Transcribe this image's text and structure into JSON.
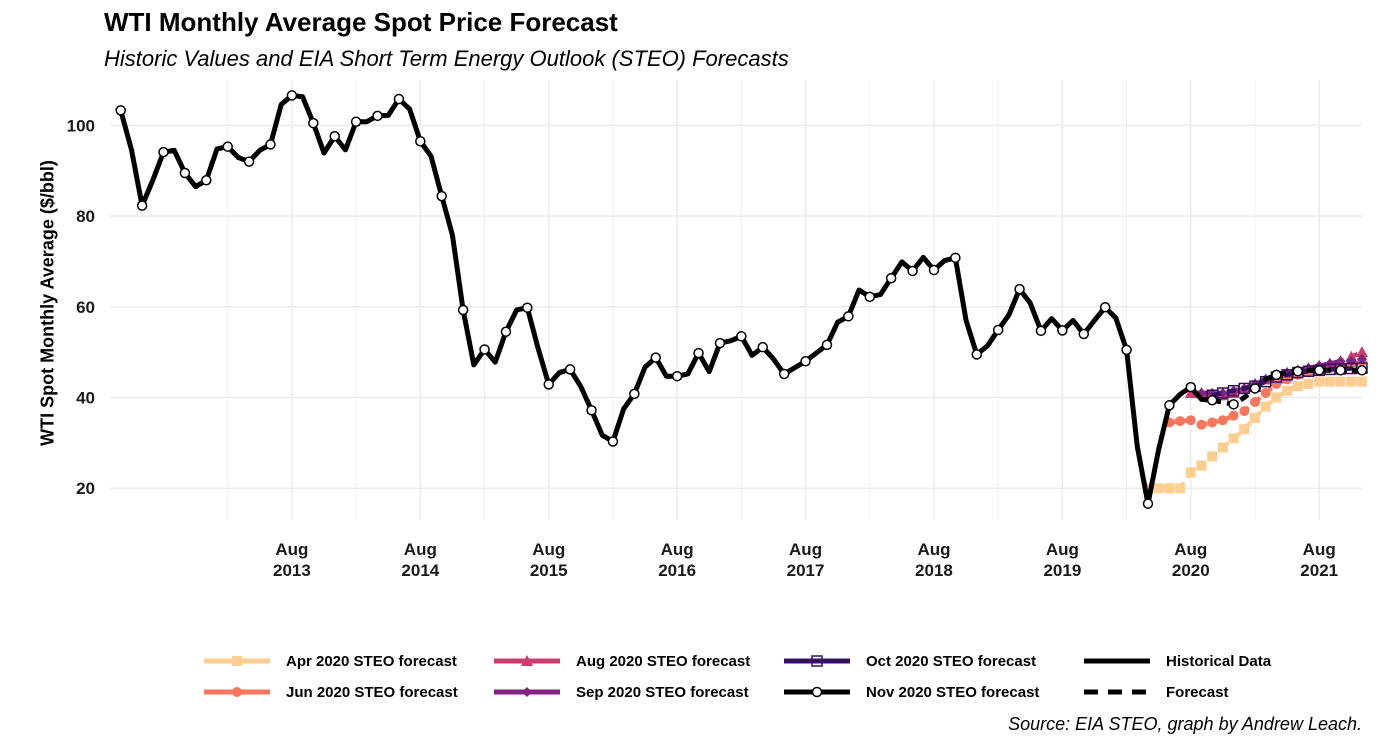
{
  "title": "WTI Monthly Average Spot Price Forecast",
  "subtitle": "Historic Values and EIA Short Term Energy Outlook (STEO) Forecasts",
  "caption": "Source: EIA STEO, graph by Andrew Leach.",
  "chart_data": {
    "type": "line",
    "ylabel": "WTI Spot Monthly Average ($/bbl)",
    "xlabel": "",
    "ylim": [
      13,
      110
    ],
    "xlim": [
      "2012-03",
      "2021-12"
    ],
    "y_ticks": [
      "20",
      "40",
      "60",
      "80",
      "100"
    ],
    "x_ticks": [
      {
        "month": "Aug",
        "year": "2013",
        "date": "2013-08"
      },
      {
        "month": "Aug",
        "year": "2014",
        "date": "2014-08"
      },
      {
        "month": "Aug",
        "year": "2015",
        "date": "2015-08"
      },
      {
        "month": "Aug",
        "year": "2016",
        "date": "2016-08"
      },
      {
        "month": "Aug",
        "year": "2017",
        "date": "2017-08"
      },
      {
        "month": "Aug",
        "year": "2018",
        "date": "2018-08"
      },
      {
        "month": "Aug",
        "year": "2019",
        "date": "2019-08"
      },
      {
        "month": "Aug",
        "year": "2020",
        "date": "2020-08"
      },
      {
        "month": "Aug",
        "year": "2021",
        "date": "2021-08"
      }
    ],
    "grid": true,
    "legend_position": "bottom",
    "series": [
      {
        "name": "Historical Data",
        "color": "#000000",
        "style": "solid",
        "marker": "none",
        "x": [
          "2012-04",
          "2012-05",
          "2012-06",
          "2012-07",
          "2012-08",
          "2012-09",
          "2012-10",
          "2012-11",
          "2012-12",
          "2013-01",
          "2013-02",
          "2013-03",
          "2013-04",
          "2013-05",
          "2013-06",
          "2013-07",
          "2013-08",
          "2013-09",
          "2013-10",
          "2013-11",
          "2013-12",
          "2014-01",
          "2014-02",
          "2014-03",
          "2014-04",
          "2014-05",
          "2014-06",
          "2014-07",
          "2014-08",
          "2014-09",
          "2014-10",
          "2014-11",
          "2014-12",
          "2015-01",
          "2015-02",
          "2015-03",
          "2015-04",
          "2015-05",
          "2015-06",
          "2015-07",
          "2015-08",
          "2015-09",
          "2015-10",
          "2015-11",
          "2015-12",
          "2016-01",
          "2016-02",
          "2016-03",
          "2016-04",
          "2016-05",
          "2016-06",
          "2016-07",
          "2016-08",
          "2016-09",
          "2016-10",
          "2016-11",
          "2016-12",
          "2017-01",
          "2017-02",
          "2017-03",
          "2017-04",
          "2017-05",
          "2017-06",
          "2017-07",
          "2017-08",
          "2017-09",
          "2017-10",
          "2017-11",
          "2017-12",
          "2018-01",
          "2018-02",
          "2018-03",
          "2018-04",
          "2018-05",
          "2018-06",
          "2018-07",
          "2018-08",
          "2018-09",
          "2018-10",
          "2018-11",
          "2018-12",
          "2019-01",
          "2019-02",
          "2019-03",
          "2019-04",
          "2019-05",
          "2019-06",
          "2019-07",
          "2019-08",
          "2019-09",
          "2019-10",
          "2019-11",
          "2019-12",
          "2020-01",
          "2020-02",
          "2020-03",
          "2020-04",
          "2020-05",
          "2020-06",
          "2020-07",
          "2020-08",
          "2020-09",
          "2020-10"
        ],
        "values": [
          103.3,
          94.7,
          82.3,
          87.9,
          94.1,
          94.5,
          89.5,
          86.5,
          87.9,
          94.8,
          95.3,
          92.9,
          92.0,
          94.5,
          95.8,
          104.6,
          106.6,
          106.3,
          100.5,
          93.9,
          97.6,
          94.6,
          100.8,
          100.8,
          102.1,
          102.2,
          105.8,
          103.6,
          96.5,
          93.2,
          84.4,
          75.8,
          59.3,
          47.2,
          50.6,
          47.8,
          54.5,
          59.3,
          59.8,
          50.9,
          42.9,
          45.5,
          46.2,
          42.4,
          37.2,
          31.7,
          30.3,
          37.5,
          40.8,
          46.7,
          48.8,
          44.7,
          44.7,
          45.2,
          49.8,
          45.7,
          52.0,
          52.5,
          53.5,
          49.3,
          51.1,
          48.5,
          45.2,
          46.6,
          48.0,
          49.8,
          51.6,
          56.6,
          57.9,
          63.7,
          62.2,
          62.7,
          66.3,
          69.9,
          67.9,
          70.9,
          68.1,
          70.2,
          70.8,
          57.0,
          49.5,
          51.4,
          54.9,
          58.2,
          63.9,
          60.8,
          54.7,
          57.4,
          54.8,
          57.0,
          54.0,
          57.0,
          59.9,
          57.5,
          50.5,
          29.2,
          16.6,
          28.6,
          38.3,
          40.7,
          42.3,
          39.6,
          39.4
        ]
      },
      {
        "name": "Nov 2020 STEO forecast",
        "color": "#000000",
        "style": "solid",
        "marker": "open-circle",
        "x": [
          "2012-04",
          "2012-05",
          "2012-06",
          "2012-07",
          "2012-08",
          "2012-09",
          "2012-10",
          "2012-11",
          "2012-12",
          "2013-01",
          "2013-02",
          "2013-03",
          "2013-04",
          "2013-05",
          "2013-06",
          "2013-07",
          "2013-08",
          "2013-09",
          "2013-10",
          "2013-11",
          "2013-12",
          "2014-01",
          "2014-02",
          "2014-03",
          "2014-04",
          "2014-05",
          "2014-06",
          "2014-07",
          "2014-08",
          "2014-09",
          "2014-10",
          "2014-11",
          "2014-12",
          "2015-01",
          "2015-02",
          "2015-03",
          "2015-04",
          "2015-05",
          "2015-06",
          "2015-07",
          "2015-08",
          "2015-09",
          "2015-10",
          "2015-11",
          "2015-12",
          "2016-01",
          "2016-02",
          "2016-03",
          "2016-04",
          "2016-05",
          "2016-06",
          "2016-07",
          "2016-08",
          "2016-09",
          "2016-10",
          "2016-11",
          "2016-12",
          "2017-01",
          "2017-02",
          "2017-03",
          "2017-04",
          "2017-05",
          "2017-06",
          "2017-07",
          "2017-08",
          "2017-09",
          "2017-10",
          "2017-11",
          "2017-12",
          "2018-01",
          "2018-02",
          "2018-03",
          "2018-04",
          "2018-05",
          "2018-06",
          "2018-07",
          "2018-08",
          "2018-09",
          "2018-10",
          "2018-11",
          "2018-12",
          "2019-01",
          "2019-02",
          "2019-03",
          "2019-04",
          "2019-05",
          "2019-06",
          "2019-07",
          "2019-08",
          "2019-09",
          "2019-10",
          "2019-11",
          "2019-12",
          "2020-01",
          "2020-02",
          "2020-03",
          "2020-04",
          "2020-05",
          "2020-06",
          "2020-07",
          "2020-08",
          "2020-09",
          "2020-10",
          "2020-11",
          "2020-12",
          "2021-01",
          "2021-02",
          "2021-03",
          "2021-04",
          "2021-05",
          "2021-06",
          "2021-07",
          "2021-08",
          "2021-09",
          "2021-10",
          "2021-11",
          "2021-12"
        ],
        "values": [
          103.3,
          94.7,
          82.3,
          87.9,
          94.1,
          94.5,
          89.5,
          86.5,
          87.9,
          94.8,
          95.3,
          92.9,
          92.0,
          94.5,
          95.8,
          104.6,
          106.6,
          106.3,
          100.5,
          93.9,
          97.6,
          94.6,
          100.8,
          100.8,
          102.1,
          102.2,
          105.8,
          103.6,
          96.5,
          93.2,
          84.4,
          75.8,
          59.3,
          47.2,
          50.6,
          47.8,
          54.5,
          59.3,
          59.8,
          50.9,
          42.9,
          45.5,
          46.2,
          42.4,
          37.2,
          31.7,
          30.3,
          37.5,
          40.8,
          46.7,
          48.8,
          44.7,
          44.7,
          45.2,
          49.8,
          45.7,
          52.0,
          52.5,
          53.5,
          49.3,
          51.1,
          48.5,
          45.2,
          46.6,
          48.0,
          49.8,
          51.6,
          56.6,
          57.9,
          63.7,
          62.2,
          62.7,
          66.3,
          69.9,
          67.9,
          70.9,
          68.1,
          70.2,
          70.8,
          57.0,
          49.5,
          51.4,
          54.9,
          58.2,
          63.9,
          60.8,
          54.7,
          57.4,
          54.8,
          57.0,
          54.0,
          57.0,
          59.9,
          57.5,
          50.5,
          29.2,
          16.6,
          28.6,
          38.3,
          40.7,
          42.3,
          39.6,
          39.4,
          39.0,
          38.5,
          40.0,
          42.0,
          44.0,
          45.0,
          45.5,
          45.8,
          46.0,
          46.0,
          46.0,
          46.0,
          46.0,
          46.0
        ]
      },
      {
        "name": "Apr 2020 STEO forecast",
        "color": "#FECE91",
        "style": "dashed",
        "marker": "square",
        "x": [
          "2020-04",
          "2020-05",
          "2020-06",
          "2020-07",
          "2020-08",
          "2020-09",
          "2020-10",
          "2020-11",
          "2020-12",
          "2021-01",
          "2021-02",
          "2021-03",
          "2021-04",
          "2021-05",
          "2021-06",
          "2021-07",
          "2021-08",
          "2021-09",
          "2021-10",
          "2021-11",
          "2021-12"
        ],
        "values": [
          20.0,
          20.0,
          20.0,
          20.0,
          23.5,
          25.0,
          27.0,
          29.0,
          31.0,
          33.0,
          35.5,
          38.0,
          40.0,
          41.5,
          42.5,
          43.0,
          43.5,
          43.5,
          43.5,
          43.5,
          43.5
        ]
      },
      {
        "name": "Jun 2020 STEO forecast",
        "color": "#F8765C",
        "style": "dashed",
        "marker": "circle",
        "x": [
          "2020-06",
          "2020-07",
          "2020-08",
          "2020-09",
          "2020-10",
          "2020-11",
          "2020-12",
          "2021-01",
          "2021-02",
          "2021-03",
          "2021-04",
          "2021-05",
          "2021-06",
          "2021-07",
          "2021-08",
          "2021-09",
          "2021-10",
          "2021-11",
          "2021-12"
        ],
        "values": [
          34.5,
          34.8,
          35.0,
          34.0,
          34.5,
          35.0,
          36.0,
          37.0,
          39.0,
          41.0,
          43.0,
          44.0,
          45.0,
          45.5,
          46.0,
          46.5,
          47.0,
          47.5,
          48.0
        ]
      },
      {
        "name": "Aug 2020 STEO forecast",
        "color": "#C93D6E",
        "style": "dashed",
        "marker": "triangle",
        "x": [
          "2020-08",
          "2020-09",
          "2020-10",
          "2020-11",
          "2020-12",
          "2021-01",
          "2021-02",
          "2021-03",
          "2021-04",
          "2021-05",
          "2021-06",
          "2021-07",
          "2021-08",
          "2021-09",
          "2021-10",
          "2021-11",
          "2021-12"
        ],
        "values": [
          41.0,
          41.0,
          40.5,
          40.5,
          41.0,
          42.0,
          43.0,
          44.0,
          45.0,
          45.5,
          46.0,
          46.5,
          47.0,
          47.5,
          48.0,
          49.0,
          50.0
        ]
      },
      {
        "name": "Sep 2020 STEO forecast",
        "color": "#832381",
        "style": "dashed",
        "marker": "diamond",
        "x": [
          "2020-09",
          "2020-10",
          "2020-11",
          "2020-12",
          "2021-01",
          "2021-02",
          "2021-03",
          "2021-04",
          "2021-05",
          "2021-06",
          "2021-07",
          "2021-08",
          "2021-09",
          "2021-10",
          "2021-11",
          "2021-12"
        ],
        "values": [
          41.0,
          41.0,
          41.0,
          41.5,
          42.0,
          43.0,
          44.0,
          45.0,
          45.5,
          46.0,
          46.5,
          47.0,
          47.5,
          48.0,
          48.0,
          48.5
        ]
      },
      {
        "name": "Oct 2020 STEO forecast",
        "color": "#351060",
        "style": "dashed",
        "marker": "open-square",
        "x": [
          "2020-10",
          "2020-11",
          "2020-12",
          "2021-01",
          "2021-02",
          "2021-03",
          "2021-04",
          "2021-05",
          "2021-06",
          "2021-07",
          "2021-08",
          "2021-09",
          "2021-10",
          "2021-11",
          "2021-12"
        ],
        "values": [
          40.5,
          41.0,
          41.5,
          42.0,
          42.5,
          43.5,
          44.5,
          45.0,
          45.5,
          45.8,
          46.0,
          46.2,
          46.3,
          46.4,
          46.5
        ]
      }
    ],
    "legend": [
      {
        "label": "Apr 2020 STEO forecast",
        "color": "#FECE91",
        "marker": "square",
        "line": "solid"
      },
      {
        "label": "Jun 2020 STEO forecast",
        "color": "#F8765C",
        "marker": "circle",
        "line": "solid"
      },
      {
        "label": "Aug 2020 STEO forecast",
        "color": "#C93D6E",
        "marker": "triangle",
        "line": "solid"
      },
      {
        "label": "Sep 2020 STEO forecast",
        "color": "#832381",
        "marker": "diamond",
        "line": "solid"
      },
      {
        "label": "Oct 2020 STEO forecast",
        "color": "#351060",
        "marker": "open-square",
        "line": "solid"
      },
      {
        "label": "Nov 2020 STEO forecast",
        "color": "#000000",
        "marker": "open-circle",
        "line": "solid"
      },
      {
        "label": "Historical Data",
        "color": "#000000",
        "marker": "none",
        "line": "solid"
      },
      {
        "label": "Forecast",
        "color": "#000000",
        "marker": "none",
        "line": "dashed"
      }
    ]
  }
}
